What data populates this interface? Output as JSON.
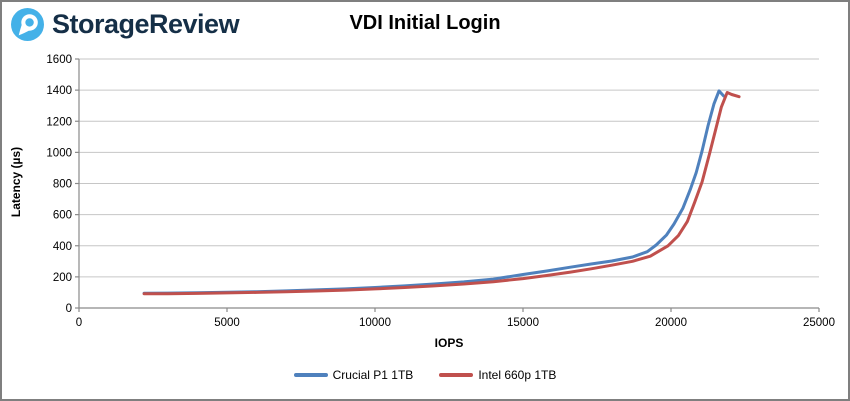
{
  "header": {
    "brand": "StorageReview",
    "logo_icon": "storagereview-pin-icon"
  },
  "colors": {
    "brand_blue": "#44b1e8",
    "brand_text": "#152f47",
    "axis": "#8a8a8a",
    "gridline": "#c6c6c6",
    "tick_text": "#000000"
  },
  "chart_data": {
    "type": "line",
    "title": "VDI Initial Login",
    "xlabel": "IOPS",
    "ylabel": "Latency (µs)",
    "xlim": [
      0,
      25000
    ],
    "ylim": [
      0,
      1600
    ],
    "x_ticks": [
      0,
      5000,
      10000,
      15000,
      20000,
      25000
    ],
    "y_ticks": [
      0,
      200,
      400,
      600,
      800,
      1000,
      1200,
      1400,
      1600
    ],
    "grid": "horizontal",
    "legend_position": "bottom",
    "series": [
      {
        "name": "Crucial P1 1TB",
        "color": "#4F81BD",
        "points": [
          [
            2200,
            95
          ],
          [
            3000,
            96
          ],
          [
            4000,
            98
          ],
          [
            5000,
            101
          ],
          [
            6000,
            105
          ],
          [
            7000,
            110
          ],
          [
            8000,
            116
          ],
          [
            9000,
            123
          ],
          [
            10000,
            132
          ],
          [
            11000,
            142
          ],
          [
            12000,
            154
          ],
          [
            13000,
            168
          ],
          [
            14000,
            186
          ],
          [
            15000,
            215
          ],
          [
            15800,
            238
          ],
          [
            16600,
            262
          ],
          [
            17300,
            283
          ],
          [
            18000,
            302
          ],
          [
            18700,
            328
          ],
          [
            19200,
            362
          ],
          [
            19500,
            405
          ],
          [
            19850,
            470
          ],
          [
            20100,
            540
          ],
          [
            20400,
            640
          ],
          [
            20650,
            760
          ],
          [
            20850,
            870
          ],
          [
            21050,
            1010
          ],
          [
            21250,
            1170
          ],
          [
            21450,
            1310
          ],
          [
            21620,
            1395
          ],
          [
            21780,
            1362
          ]
        ]
      },
      {
        "name": "Intel 660p 1TB",
        "color": "#C0504D",
        "points": [
          [
            2200,
            91
          ],
          [
            3000,
            92
          ],
          [
            4000,
            94
          ],
          [
            5000,
            97
          ],
          [
            6000,
            100
          ],
          [
            7000,
            104
          ],
          [
            8000,
            109
          ],
          [
            9000,
            115
          ],
          [
            10000,
            123
          ],
          [
            11000,
            132
          ],
          [
            12000,
            142
          ],
          [
            13000,
            154
          ],
          [
            14000,
            169
          ],
          [
            15000,
            189
          ],
          [
            15800,
            209
          ],
          [
            16600,
            231
          ],
          [
            17300,
            252
          ],
          [
            18000,
            275
          ],
          [
            18700,
            300
          ],
          [
            19300,
            333
          ],
          [
            19900,
            400
          ],
          [
            20250,
            465
          ],
          [
            20550,
            555
          ],
          [
            20800,
            680
          ],
          [
            21050,
            810
          ],
          [
            21300,
            990
          ],
          [
            21500,
            1140
          ],
          [
            21700,
            1290
          ],
          [
            21900,
            1385
          ],
          [
            22050,
            1372
          ],
          [
            22300,
            1358
          ]
        ]
      }
    ]
  }
}
